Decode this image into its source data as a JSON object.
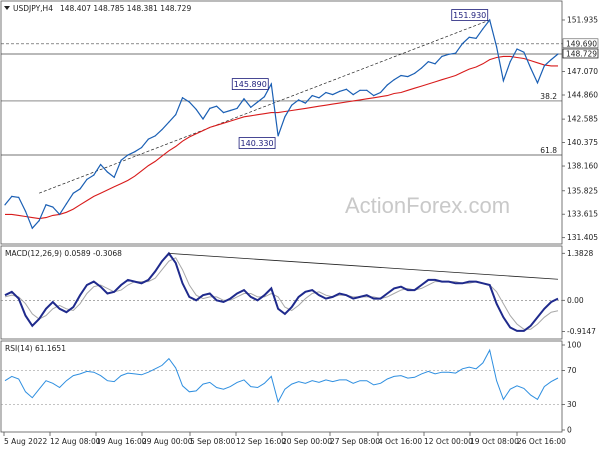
{
  "header": {
    "title": "USDJPY,H4",
    "ohlc": "148.407 148.785 148.381 148.729"
  },
  "watermark": "ActionForex.com",
  "colors": {
    "price": "#1a5fb4",
    "ma": "#d81b1b",
    "macd": "#1f2a8c",
    "signal": "#a8a8a8",
    "rsi": "#2f8fe0",
    "hline": "#444444",
    "trend": "#222222"
  },
  "chart_data": [
    {
      "type": "line",
      "title": "USDJPY,H4",
      "ylim": [
        130.9,
        152.5
      ],
      "y_ticks": [
        131.405,
        133.615,
        135.825,
        138.16,
        140.375,
        142.585,
        144.86,
        147.07,
        149.69,
        151.935
      ],
      "y_tick_labels": [
        "131.405",
        "133.615",
        "135.825",
        "138.160",
        "140.375",
        "142.585",
        "144.860",
        "147.070",
        "149.690",
        "151.935"
      ],
      "current_price": 148.729,
      "current_price_label": "148.729",
      "series": [
        {
          "values": [
            134.5,
            135.3,
            135.2,
            133.9,
            132.3,
            133.0,
            134.5,
            134.3,
            133.6,
            134.6,
            135.6,
            136.0,
            136.9,
            137.3,
            138.3,
            137.6,
            137.1,
            138.7,
            139.2,
            139.5,
            139.9,
            140.7,
            141.0,
            141.6,
            142.3,
            143.0,
            144.6,
            144.2,
            143.5,
            142.6,
            143.6,
            143.8,
            143.2,
            143.4,
            143.6,
            144.5,
            143.7,
            144.2,
            144.7,
            145.9,
            141.0,
            142.8,
            143.9,
            144.4,
            144.1,
            144.8,
            144.6,
            145.1,
            144.9,
            145.2,
            145.4,
            144.9,
            145.3,
            145.3,
            144.8,
            145.1,
            145.8,
            146.3,
            146.7,
            146.6,
            146.9,
            147.4,
            148.0,
            147.8,
            148.5,
            148.7,
            148.8,
            149.7,
            150.3,
            150.2,
            151.1,
            151.93,
            149.4,
            146.2,
            148.0,
            149.2,
            148.9,
            147.4,
            146.0,
            147.6,
            148.2,
            148.729
          ]
        },
        {
          "values": [
            133.6,
            133.6,
            133.5,
            133.4,
            133.3,
            133.2,
            133.3,
            133.5,
            133.6,
            133.8,
            134.1,
            134.5,
            134.9,
            135.3,
            135.6,
            135.9,
            136.2,
            136.5,
            136.8,
            137.2,
            137.7,
            138.2,
            138.6,
            139.1,
            139.6,
            140.0,
            140.5,
            140.9,
            141.2,
            141.5,
            141.8,
            142.0,
            142.2,
            142.4,
            142.6,
            142.8,
            142.9,
            143.0,
            143.1,
            143.2,
            143.2,
            143.3,
            143.4,
            143.5,
            143.6,
            143.7,
            143.8,
            143.9,
            144.0,
            144.1,
            144.2,
            144.3,
            144.4,
            144.5,
            144.6,
            144.7,
            144.8,
            145.0,
            145.1,
            145.3,
            145.5,
            145.7,
            145.9,
            146.1,
            146.3,
            146.5,
            146.7,
            147.0,
            147.3,
            147.5,
            147.8,
            148.2,
            148.4,
            148.5,
            148.5,
            148.4,
            148.3,
            148.1,
            147.9,
            147.7,
            147.6,
            147.6
          ]
        }
      ],
      "horizontal_levels": [
        {
          "value": 149.69,
          "style": "dashed",
          "label": "149.690"
        },
        {
          "value": 148.729,
          "style": "solid",
          "label": ""
        },
        {
          "value": 144.3,
          "style": "solid",
          "label": "38.2"
        },
        {
          "value": 139.2,
          "style": "solid",
          "label": "61.8"
        }
      ],
      "trendline": {
        "from": [
          5,
          135.6
        ],
        "to": [
          71,
          151.93
        ],
        "style": "dashed"
      },
      "annotations": [
        {
          "label": "151.930",
          "x": 71,
          "y": 151.93
        },
        {
          "label": "145.890",
          "x": 39,
          "y": 145.89
        },
        {
          "label": "140.330",
          "x": 40,
          "y": 140.33
        }
      ]
    },
    {
      "type": "line",
      "title": "MACD(12,26,9) 0.0589 -0.3068",
      "ylim": [
        -1.05,
        1.48
      ],
      "y_ticks": [
        1.3828,
        0.0,
        -0.9147
      ],
      "y_tick_labels": [
        "1.3828",
        "0.00",
        "-0.9147"
      ],
      "series": [
        {
          "values": [
            0.15,
            0.25,
            0.05,
            -0.45,
            -0.75,
            -0.55,
            -0.25,
            -0.05,
            -0.25,
            -0.35,
            -0.2,
            0.15,
            0.45,
            0.55,
            0.4,
            0.2,
            0.25,
            0.45,
            0.6,
            0.55,
            0.5,
            0.6,
            0.85,
            1.15,
            1.38,
            1.1,
            0.5,
            0.1,
            0.0,
            0.15,
            0.2,
            0.0,
            -0.05,
            0.05,
            0.2,
            0.3,
            0.1,
            0.0,
            0.15,
            0.35,
            -0.25,
            -0.4,
            -0.2,
            0.1,
            0.25,
            0.3,
            0.15,
            0.05,
            0.1,
            0.2,
            0.15,
            0.05,
            0.1,
            0.15,
            0.05,
            0.05,
            0.2,
            0.35,
            0.4,
            0.3,
            0.3,
            0.45,
            0.6,
            0.6,
            0.55,
            0.55,
            0.5,
            0.5,
            0.55,
            0.55,
            0.5,
            0.45,
            -0.1,
            -0.5,
            -0.8,
            -0.9,
            -0.9,
            -0.75,
            -0.5,
            -0.25,
            -0.05,
            0.05
          ]
        },
        {
          "values": [
            0.1,
            0.15,
            0.1,
            -0.1,
            -0.4,
            -0.55,
            -0.45,
            -0.25,
            -0.15,
            -0.25,
            -0.3,
            -0.1,
            0.2,
            0.4,
            0.45,
            0.35,
            0.25,
            0.3,
            0.45,
            0.55,
            0.55,
            0.55,
            0.65,
            0.9,
            1.15,
            1.25,
            0.9,
            0.45,
            0.15,
            0.05,
            0.1,
            0.1,
            0.0,
            0.0,
            0.1,
            0.2,
            0.2,
            0.1,
            0.1,
            0.2,
            0.1,
            -0.2,
            -0.3,
            -0.15,
            0.05,
            0.2,
            0.25,
            0.15,
            0.1,
            0.15,
            0.15,
            0.1,
            0.1,
            0.1,
            0.1,
            0.05,
            0.1,
            0.2,
            0.3,
            0.35,
            0.3,
            0.35,
            0.45,
            0.55,
            0.55,
            0.55,
            0.55,
            0.5,
            0.5,
            0.55,
            0.5,
            0.45,
            0.25,
            -0.1,
            -0.45,
            -0.7,
            -0.85,
            -0.85,
            -0.7,
            -0.5,
            -0.35,
            -0.31
          ]
        }
      ],
      "trendline": {
        "from": [
          24,
          1.38
        ],
        "to": [
          81,
          0.62
        ],
        "style": "solid"
      }
    },
    {
      "type": "line",
      "title": "RSI(14) 61.1651",
      "ylim": [
        0,
        100
      ],
      "y_ticks": [
        100,
        70,
        30,
        0
      ],
      "y_tick_labels": [
        "100",
        "70",
        "30",
        "0"
      ],
      "reference_levels": [
        70,
        30
      ],
      "series": [
        {
          "values": [
            58,
            63,
            60,
            45,
            38,
            48,
            58,
            55,
            50,
            58,
            64,
            66,
            69,
            68,
            64,
            58,
            57,
            64,
            67,
            66,
            65,
            68,
            72,
            76,
            84,
            73,
            52,
            45,
            46,
            54,
            56,
            50,
            48,
            51,
            56,
            59,
            51,
            50,
            55,
            63,
            33,
            48,
            54,
            57,
            55,
            58,
            56,
            59,
            57,
            59,
            59,
            55,
            58,
            58,
            53,
            55,
            60,
            63,
            64,
            61,
            62,
            66,
            69,
            66,
            68,
            68,
            67,
            72,
            74,
            72,
            79,
            94,
            58,
            36,
            48,
            52,
            49,
            41,
            36,
            51,
            57,
            61.17
          ]
        }
      ]
    }
  ],
  "x_axis": {
    "labels": [
      "5 Aug 2022",
      "12 Aug 08:00",
      "19 Aug 16:00",
      "29 Aug 00:00",
      "5 Sep 08:00",
      "12 Sep 16:00",
      "20 Sep 00:00",
      "27 Sep 08:00",
      "4 Oct 16:00",
      "12 Oct 00:00",
      "19 Oct 08:00",
      "26 Oct 16:00"
    ]
  }
}
